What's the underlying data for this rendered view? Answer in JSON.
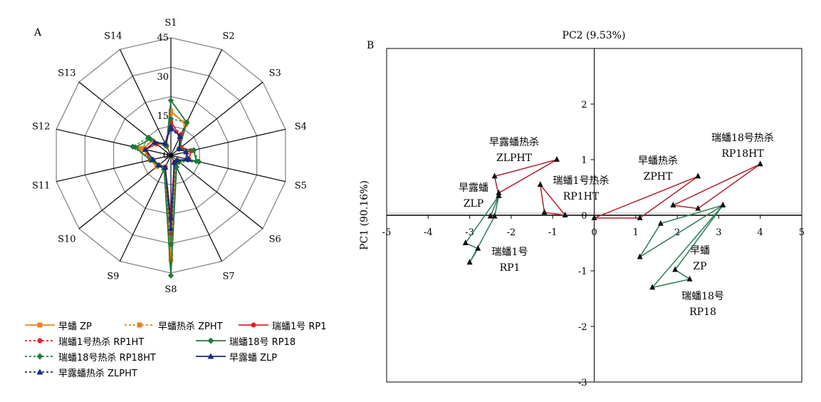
{
  "chart_data": [
    {
      "type": "radar",
      "panel_label": "A",
      "axes": [
        "S1",
        "S2",
        "S3",
        "S4",
        "S5",
        "S6",
        "S7",
        "S8",
        "S9",
        "S10",
        "S11",
        "S12",
        "S13",
        "S14"
      ],
      "radial_ticks": [
        "0",
        "15",
        "30",
        "45"
      ],
      "rmax": 45,
      "rmin": 0,
      "series": [
        {
          "name": "早蟠 ZP",
          "color": "#e8821e",
          "dashed": false,
          "marker": "square",
          "values": [
            17,
            13,
            4,
            8,
            7,
            3,
            4,
            40,
            5,
            7,
            8,
            11,
            9,
            4
          ]
        },
        {
          "name": "早蟠热杀 ZPHT",
          "color": "#e8821e",
          "dashed": true,
          "marker": "square",
          "values": [
            16,
            14,
            4,
            8,
            7,
            4,
            4,
            38,
            5,
            6,
            8,
            12,
            9,
            4
          ]
        },
        {
          "name": "瑞蟠1号 RP1",
          "color": "#e01f26",
          "dashed": false,
          "marker": "circle",
          "values": [
            13,
            8,
            5,
            8,
            7,
            3,
            3,
            24,
            5,
            6,
            8,
            10,
            7,
            5
          ]
        },
        {
          "name": "瑞蟠1号热杀 RP1HT",
          "color": "#e01f26",
          "dashed": true,
          "marker": "circle",
          "values": [
            12,
            9,
            5,
            8,
            7,
            3,
            3,
            30,
            5,
            6,
            8,
            10,
            7,
            5
          ]
        },
        {
          "name": "瑞蟠18号 RP18",
          "color": "#1f7a3a",
          "dashed": false,
          "marker": "diamond",
          "values": [
            21,
            14,
            4,
            9,
            10,
            3,
            5,
            46,
            6,
            6,
            8,
            14,
            10,
            4
          ]
        },
        {
          "name": "瑞蟠18号热杀 RP18HT",
          "color": "#1f7a3a",
          "dashed": true,
          "marker": "diamond",
          "values": [
            14,
            14,
            4,
            9,
            11,
            4,
            4,
            34,
            6,
            6,
            8,
            15,
            11,
            4
          ]
        },
        {
          "name": "早露蟠 ZLP",
          "color": "#1b2a7a",
          "dashed": false,
          "marker": "triangle",
          "values": [
            11,
            8,
            4,
            6,
            7,
            3,
            3,
            28,
            5,
            6,
            7,
            10,
            8,
            5
          ]
        },
        {
          "name": "早露蟠热杀 ZLPHT",
          "color": "#1b2a7a",
          "dashed": true,
          "marker": "triangle",
          "values": [
            10,
            8,
            4,
            6,
            6,
            3,
            3,
            24,
            5,
            6,
            7,
            10,
            8,
            5
          ]
        }
      ]
    },
    {
      "type": "scatter",
      "panel_label": "B",
      "xlabel": "PC2 (9.53%)",
      "ylabel": "PC1 (90.16%)",
      "xlim": [
        -5,
        5
      ],
      "ylim": [
        -3,
        3
      ],
      "xticks": [
        "-5",
        "-4",
        "-3",
        "-2",
        "-1",
        "0",
        "1",
        "2",
        "3",
        "4",
        "5"
      ],
      "yticks": [
        "-3",
        "-2",
        "-1",
        "0",
        "1",
        "2"
      ],
      "groups": [
        {
          "line1": "早露蟠热杀",
          "line2": "ZLPHT",
          "color": "#b0202a",
          "points": [
            [
              -2.4,
              0.7
            ],
            [
              -0.9,
              1.0
            ],
            [
              -2.3,
              0.4
            ],
            [
              -2.3,
              0.35
            ]
          ]
        },
        {
          "line1": "瑞蟠1号热杀",
          "line2": "RP1HT",
          "color": "#b0202a",
          "points": [
            [
              -1.3,
              0.55
            ],
            [
              -1.2,
              0.05
            ],
            [
              -0.7,
              0.0
            ]
          ]
        },
        {
          "line1": "早蟠热杀",
          "line2": "ZPHT",
          "color": "#b0202a",
          "points": [
            [
              2.5,
              0.7
            ],
            [
              0.0,
              -0.05
            ],
            [
              1.1,
              -0.05
            ]
          ]
        },
        {
          "line1": "瑞蟠18号热杀",
          "line2": "RP18HT",
          "color": "#b0202a",
          "points": [
            [
              4.0,
              0.92
            ],
            [
              1.9,
              0.18
            ],
            [
              2.5,
              0.12
            ]
          ]
        },
        {
          "line1": "早露蟠",
          "line2": "ZLP",
          "color": "#2a7a55",
          "points": [
            [
              -2.3,
              0.35
            ],
            [
              -3.1,
              -0.5
            ],
            [
              -2.8,
              -0.6
            ],
            [
              -3.0,
              -0.85
            ],
            [
              -2.4,
              -0.02
            ]
          ]
        },
        {
          "line1": "瑞蟠1号",
          "line2": "RP1",
          "color": "#2a7a55",
          "points": [
            [
              -2.3,
              0.35
            ],
            [
              -2.5,
              -0.02
            ]
          ]
        },
        {
          "line1": "早蟠",
          "line2": "ZP",
          "color": "#2a7a55",
          "points": [
            [
              3.1,
              0.18
            ],
            [
              1.1,
              -0.75
            ],
            [
              1.6,
              -0.15
            ]
          ]
        },
        {
          "line1": "瑞蟠18号",
          "line2": "RP18",
          "color": "#2a7a55",
          "points": [
            [
              3.1,
              0.18
            ],
            [
              1.4,
              -1.3
            ],
            [
              2.3,
              -1.15
            ],
            [
              1.95,
              -0.98
            ]
          ]
        }
      ]
    }
  ]
}
